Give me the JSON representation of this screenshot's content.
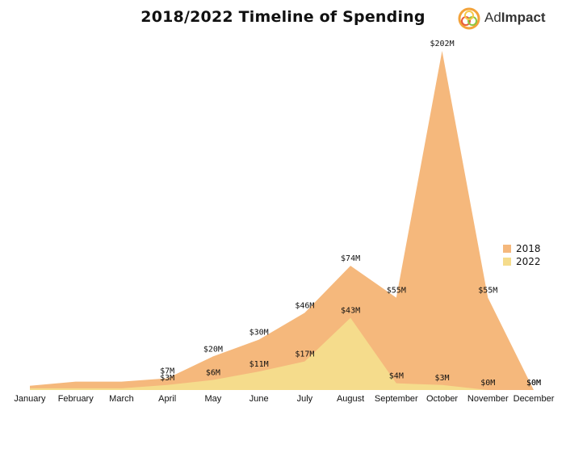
{
  "logo": {
    "prefix": "Ad",
    "suffix": "Impact"
  },
  "chart_data": {
    "type": "area",
    "title": "2018/2022 Timeline of Spending",
    "categories": [
      "January",
      "February",
      "March",
      "April",
      "May",
      "June",
      "July",
      "August",
      "September",
      "October",
      "November",
      "December"
    ],
    "series": [
      {
        "name": "2018",
        "color": "#f5b87c",
        "values": [
          2.5,
          5,
          5,
          7,
          20,
          30,
          46,
          74,
          55,
          202,
          55,
          0
        ],
        "labels": [
          "",
          "",
          "",
          "$7M",
          "$20M",
          "$30M",
          "$46M",
          "$74M",
          "$55M",
          "$202M",
          "$55M",
          "$0M"
        ]
      },
      {
        "name": "2022",
        "color": "#f5dc8c",
        "values": [
          1,
          1,
          1,
          3,
          6,
          11,
          17,
          43,
          4,
          3,
          0,
          0
        ],
        "labels": [
          "",
          "",
          "",
          "$3M",
          "$6M",
          "$11M",
          "$17M",
          "$43M",
          "$4M",
          "$3M",
          "$0M",
          "$0M"
        ]
      }
    ],
    "ylim": [
      0,
      202
    ],
    "grid": false,
    "legend": "right"
  }
}
